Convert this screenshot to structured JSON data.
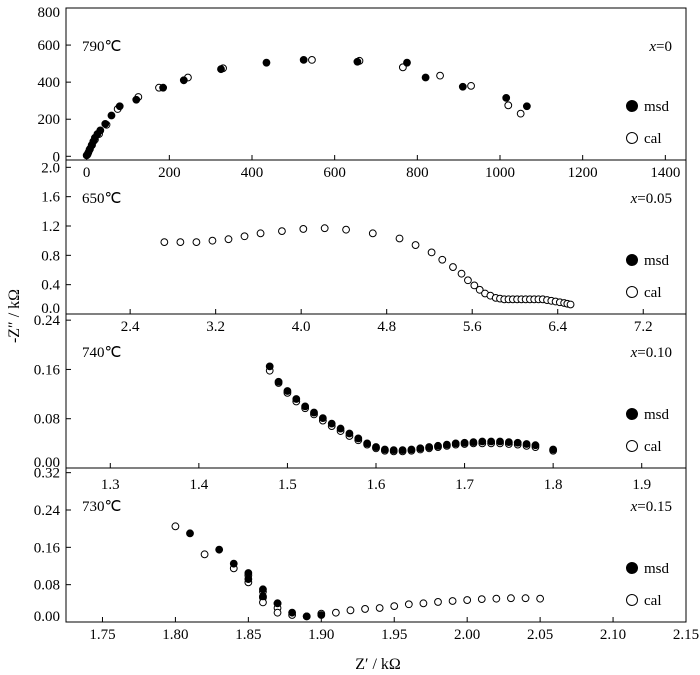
{
  "chart_data": {
    "type": "scatter",
    "xlabel": "Z′ / kΩ",
    "ylabel": "-Z″ / kΩ",
    "legend": {
      "placement": "right",
      "entries": [
        "msd",
        "cal"
      ]
    },
    "grid": false,
    "panels": [
      {
        "temperature": "790℃",
        "composition": "x=0",
        "xlim": [
          -50,
          1450
        ],
        "ylim": [
          -20,
          800
        ],
        "xticks": [
          0,
          200,
          400,
          600,
          800,
          1000,
          1200,
          1400
        ],
        "xtick_labels": [
          "0",
          "200",
          "400",
          "600",
          "800",
          "1000",
          "1200",
          "1400"
        ],
        "yticks": [
          0,
          200,
          400,
          600,
          800
        ],
        "ytick_labels": [
          "0",
          "200",
          "400",
          "600",
          "800"
        ],
        "x_tick_labels_position": "bottom",
        "series": [
          {
            "name": "msd",
            "filled": true,
            "x": [
              0,
              4,
              8,
              12,
              16,
              20,
              26,
              33,
              45,
              60,
              80,
              120,
              185,
              235,
              325,
              435,
              525,
              655,
              775,
              820,
              910,
              1015,
              1065
            ],
            "y": [
              5,
              20,
              40,
              60,
              80,
              100,
              120,
              140,
              175,
              220,
              270,
              305,
              370,
              410,
              470,
              505,
              520,
              510,
              505,
              425,
              375,
              315,
              270
            ]
          },
          {
            "name": "cal",
            "filled": false,
            "x": [
              2,
              7,
              13,
              20,
              30,
              48,
              75,
              125,
              175,
              245,
              330,
              545,
              660,
              765,
              855,
              930,
              1020,
              1050
            ],
            "y": [
              10,
              35,
              60,
              90,
              120,
              170,
              255,
              320,
              370,
              425,
              475,
              520,
              515,
              480,
              435,
              380,
              275,
              230
            ]
          }
        ]
      },
      {
        "temperature": "650℃",
        "composition": "x=0.05",
        "xlim": [
          1.8,
          7.6
        ],
        "ylim": [
          0,
          2.1
        ],
        "xticks": [
          2.4,
          3.2,
          4.0,
          4.8,
          5.6,
          6.4,
          7.2
        ],
        "xtick_labels": [
          "2.4",
          "3.2",
          "4.0",
          "4.8",
          "5.6",
          "6.4",
          "7.2"
        ],
        "yticks": [
          0,
          0.4,
          0.8,
          1.2,
          1.6,
          2.0
        ],
        "ytick_labels": [
          "0.0",
          "0.4",
          "0.8",
          "1.2",
          "1.6",
          "2.0"
        ],
        "x_tick_labels_position": "bottom",
        "series": [
          {
            "name": "msd",
            "filled": true,
            "x": [],
            "y": []
          },
          {
            "name": "cal",
            "filled": false,
            "x": [
              2.72,
              2.87,
              3.02,
              3.17,
              3.32,
              3.47,
              3.62,
              3.82,
              4.02,
              4.22,
              4.42,
              4.67,
              4.92,
              5.07,
              5.22,
              5.32,
              5.42,
              5.5,
              5.56,
              5.62,
              5.67,
              5.72,
              5.77,
              5.82,
              5.86,
              5.9,
              5.94,
              5.98,
              6.02,
              6.06,
              6.1,
              6.14,
              6.18,
              6.22,
              6.26,
              6.3,
              6.34,
              6.38,
              6.42,
              6.46,
              6.49,
              6.52
            ],
            "y": [
              0.98,
              0.98,
              0.98,
              1.0,
              1.02,
              1.06,
              1.1,
              1.13,
              1.16,
              1.17,
              1.15,
              1.1,
              1.03,
              0.94,
              0.84,
              0.74,
              0.64,
              0.55,
              0.46,
              0.39,
              0.33,
              0.28,
              0.25,
              0.22,
              0.21,
              0.2,
              0.2,
              0.2,
              0.2,
              0.2,
              0.2,
              0.2,
              0.2,
              0.2,
              0.2,
              0.19,
              0.18,
              0.17,
              0.16,
              0.15,
              0.14,
              0.13
            ]
          }
        ]
      },
      {
        "temperature": "740℃",
        "composition": "x=0.10",
        "xlim": [
          1.25,
          1.95
        ],
        "ylim": [
          0,
          0.25
        ],
        "xticks": [
          1.3,
          1.4,
          1.5,
          1.6,
          1.7,
          1.8,
          1.9
        ],
        "xtick_labels": [
          "1.3",
          "1.4",
          "1.5",
          "1.6",
          "1.7",
          "1.8",
          "1.9"
        ],
        "yticks": [
          0,
          0.08,
          0.16,
          0.24
        ],
        "ytick_labels": [
          "0.00",
          "0.08",
          "0.16",
          "0.24"
        ],
        "x_tick_labels_position": "below",
        "series": [
          {
            "name": "msd",
            "filled": true,
            "x": [
              1.48,
              1.49,
              1.5,
              1.51,
              1.52,
              1.53,
              1.54,
              1.55,
              1.56,
              1.57,
              1.58,
              1.59,
              1.6,
              1.61,
              1.62,
              1.63,
              1.64,
              1.65,
              1.66,
              1.67,
              1.68,
              1.69,
              1.7,
              1.71,
              1.72,
              1.73,
              1.74,
              1.75,
              1.76,
              1.77,
              1.78,
              1.8
            ],
            "y": [
              0.165,
              0.14,
              0.125,
              0.112,
              0.1,
              0.09,
              0.081,
              0.072,
              0.064,
              0.056,
              0.048,
              0.04,
              0.034,
              0.03,
              0.029,
              0.029,
              0.03,
              0.032,
              0.034,
              0.036,
              0.038,
              0.04,
              0.041,
              0.042,
              0.043,
              0.043,
              0.043,
              0.042,
              0.041,
              0.039,
              0.037,
              0.03
            ]
          },
          {
            "name": "cal",
            "filled": false,
            "x": [
              1.48,
              1.49,
              1.5,
              1.51,
              1.52,
              1.53,
              1.54,
              1.55,
              1.56,
              1.57,
              1.58,
              1.59,
              1.6,
              1.61,
              1.62,
              1.63,
              1.64,
              1.65,
              1.66,
              1.67,
              1.68,
              1.69,
              1.7,
              1.71,
              1.72,
              1.73,
              1.74,
              1.75,
              1.76,
              1.77,
              1.78,
              1.8
            ],
            "y": [
              0.158,
              0.138,
              0.122,
              0.108,
              0.097,
              0.087,
              0.077,
              0.068,
              0.06,
              0.052,
              0.045,
              0.038,
              0.032,
              0.028,
              0.027,
              0.027,
              0.028,
              0.03,
              0.032,
              0.034,
              0.036,
              0.038,
              0.039,
              0.04,
              0.04,
              0.04,
              0.04,
              0.039,
              0.038,
              0.036,
              0.034,
              0.028
            ]
          }
        ]
      },
      {
        "temperature": "730℃",
        "composition": "x=0.15",
        "xlim": [
          1.725,
          2.15
        ],
        "ylim": [
          0,
          0.33
        ],
        "xticks": [
          1.75,
          1.8,
          1.85,
          1.9,
          1.95,
          2.0,
          2.05,
          2.1,
          2.15
        ],
        "xtick_labels": [
          "1.75",
          "1.80",
          "1.85",
          "1.90",
          "1.95",
          "2.00",
          "2.05",
          "2.10",
          "2.15"
        ],
        "yticks": [
          0,
          0.08,
          0.16,
          0.24,
          0.32
        ],
        "ytick_labels": [
          "0.00",
          "0.08",
          "0.16",
          "0.24",
          "0.32"
        ],
        "x_tick_labels_position": "bottom",
        "series": [
          {
            "name": "msd",
            "filled": true,
            "x": [
              1.81,
              1.83,
              1.84,
              1.85,
              1.85,
              1.86,
              1.86,
              1.87,
              1.88,
              1.89,
              1.9
            ],
            "y": [
              0.19,
              0.155,
              0.125,
              0.105,
              0.092,
              0.07,
              0.055,
              0.04,
              0.02,
              0.012,
              0.015
            ]
          },
          {
            "name": "cal",
            "filled": false,
            "x": [
              1.8,
              1.82,
              1.84,
              1.85,
              1.85,
              1.86,
              1.86,
              1.86,
              1.87,
              1.87,
              1.87,
              1.88,
              1.89,
              1.9,
              1.91,
              1.92,
              1.93,
              1.94,
              1.95,
              1.96,
              1.97,
              1.98,
              1.99,
              2.0,
              2.01,
              2.02,
              2.03,
              2.04,
              2.05
            ],
            "y": [
              0.205,
              0.145,
              0.115,
              0.1,
              0.085,
              0.065,
              0.052,
              0.042,
              0.04,
              0.03,
              0.02,
              0.015,
              0.012,
              0.018,
              0.02,
              0.025,
              0.028,
              0.03,
              0.034,
              0.038,
              0.04,
              0.043,
              0.045,
              0.047,
              0.049,
              0.05,
              0.051,
              0.051,
              0.05
            ]
          }
        ]
      }
    ]
  }
}
